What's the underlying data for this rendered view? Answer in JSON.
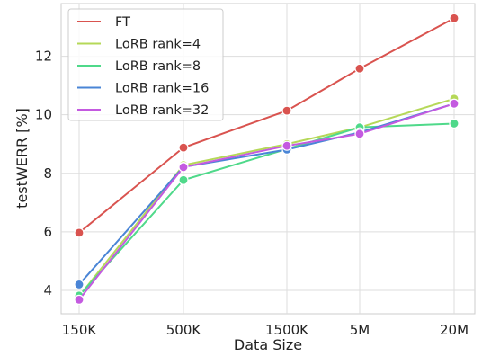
{
  "chart_data": {
    "type": "line",
    "title": "",
    "xlabel": "Data Size",
    "ylabel": "testWERR [%]",
    "categories": [
      "150K",
      "500K",
      "1500K",
      "5M",
      "20M"
    ],
    "ylim": [
      3.2,
      13.8
    ],
    "yticks": [
      4,
      6,
      8,
      10,
      12
    ],
    "grid": true,
    "legend_position": "top-left",
    "series": [
      {
        "name": "FT",
        "color": "#d9534f",
        "values": [
          5.97,
          8.88,
          10.14,
          11.58,
          13.3
        ]
      },
      {
        "name": "LoRB rank=4",
        "color": "#b5d858",
        "values": [
          3.8,
          8.28,
          9.0,
          9.57,
          10.55
        ]
      },
      {
        "name": "LoRB rank=8",
        "color": "#4fd98a",
        "values": [
          3.82,
          7.77,
          8.83,
          9.57,
          9.7
        ]
      },
      {
        "name": "LoRB rank=16",
        "color": "#4a85d6",
        "values": [
          4.2,
          8.22,
          8.81,
          9.4,
          10.38
        ]
      },
      {
        "name": "LoRB rank=32",
        "color": "#c45ae0",
        "values": [
          3.68,
          8.21,
          8.94,
          9.35,
          10.38
        ]
      }
    ]
  }
}
